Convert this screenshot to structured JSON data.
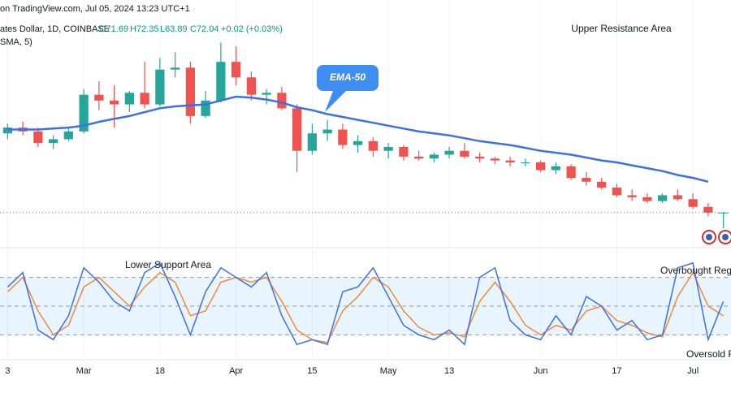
{
  "chart_data": [
    {
      "type": "candlestick",
      "source": "on TradingView.com, Jul 05, 2024 13:23 UTC+1",
      "symbol": "ates Dollar, 1D, COINBASE",
      "ohlc": [
        "O71.69",
        "H72.35",
        "L63.89",
        "C72.04"
      ],
      "change": "+0.02 (+0.03%)",
      "indicator": "SMA, 5)",
      "annotations": [
        "Upper Resistance Area"
      ],
      "categories": [
        "3",
        null,
        null,
        null,
        null,
        "Mar",
        null,
        null,
        null,
        null,
        "18",
        null,
        null,
        null,
        null,
        "Apr",
        null,
        null,
        null,
        null,
        "15",
        null,
        null,
        null,
        null,
        "May",
        null,
        null,
        null,
        "13",
        null,
        null,
        null,
        null,
        null,
        "Jun",
        null,
        null,
        null,
        null,
        "17",
        null,
        null,
        null,
        null,
        "Jul",
        null,
        null
      ],
      "open": [
        113,
        116,
        114,
        108,
        110,
        114,
        133,
        130,
        128,
        134,
        128,
        146,
        147,
        122,
        130,
        150,
        142,
        133,
        134,
        126,
        104,
        113,
        115,
        107,
        109,
        104,
        106,
        101,
        100,
        102,
        104,
        101,
        100,
        99,
        98,
        98,
        94,
        96,
        90,
        88,
        85,
        81,
        80,
        78,
        81,
        79,
        75,
        71.69
      ],
      "high": [
        118,
        119,
        116,
        112,
        116,
        136,
        140,
        138,
        135,
        150,
        152,
        155,
        150,
        135,
        160,
        158,
        145,
        136,
        137,
        128,
        118,
        120,
        118,
        112,
        111,
        108,
        107,
        104,
        103,
        106,
        108,
        103,
        101,
        101,
        100,
        99,
        98,
        97,
        93,
        90,
        87,
        84,
        82,
        82,
        84,
        82,
        77,
        72.35
      ],
      "low": [
        110,
        112,
        106,
        105,
        109,
        113,
        125,
        116,
        124,
        126,
        127,
        142,
        118,
        121,
        129,
        138,
        130,
        128,
        125,
        93,
        102,
        109,
        105,
        103,
        101,
        100,
        99,
        99,
        98,
        100,
        100,
        98,
        97,
        96,
        96,
        93,
        92,
        89,
        86,
        84,
        80,
        78,
        77,
        77,
        78,
        74,
        70,
        63.89
      ],
      "close": [
        116,
        114,
        108,
        110,
        114,
        133,
        130,
        128,
        134,
        128,
        146,
        147,
        122,
        130,
        150,
        142,
        133,
        134,
        126,
        104,
        113,
        115,
        107,
        109,
        104,
        106,
        101,
        100,
        102,
        104,
        101,
        100,
        99,
        98,
        98,
        94,
        96,
        90,
        88,
        85,
        81,
        80,
        78,
        81,
        79,
        75,
        72,
        72.04
      ],
      "up_color": "#26a69a",
      "down_color": "#ef5350",
      "ylim": [
        56,
        182
      ],
      "series": [
        {
          "name": "EMA-50",
          "color": "#3d6fe8",
          "values": [
            115,
            115,
            115,
            115.5,
            116,
            117,
            119,
            120.5,
            122,
            124,
            126,
            127,
            127.5,
            128,
            130,
            132,
            131.5,
            130.5,
            129,
            126.5,
            125,
            123,
            121.5,
            120,
            118.5,
            117,
            115.5,
            114,
            113,
            112,
            110.5,
            109,
            108,
            107,
            105.5,
            104,
            103,
            102,
            100.5,
            99,
            98,
            96.5,
            95,
            93.5,
            91.5,
            90,
            88,
            null
          ]
        }
      ]
    },
    {
      "type": "line",
      "annotations": [
        "Lower Support Area",
        "Overbought Reg",
        "Oversold R"
      ],
      "ylim": [
        0,
        100
      ],
      "bands": [
        80,
        50,
        20
      ],
      "band_color": "#2196f3",
      "series": [
        {
          "color": "#3d6fe8",
          "values": [
            70,
            85,
            25,
            15,
            40,
            90,
            75,
            55,
            45,
            85,
            95,
            60,
            20,
            65,
            90,
            80,
            70,
            85,
            40,
            10,
            15,
            10,
            65,
            70,
            90,
            60,
            30,
            20,
            15,
            25,
            10,
            80,
            90,
            35,
            20,
            15,
            40,
            20,
            60,
            50,
            25,
            35,
            15,
            20,
            90,
            95,
            15,
            55
          ]
        },
        {
          "color": "#f08a3c",
          "values": [
            65,
            80,
            45,
            20,
            30,
            70,
            80,
            65,
            50,
            70,
            85,
            75,
            40,
            45,
            75,
            80,
            75,
            80,
            55,
            25,
            15,
            12,
            45,
            60,
            80,
            70,
            45,
            28,
            20,
            22,
            18,
            55,
            75,
            55,
            30,
            20,
            30,
            25,
            45,
            50,
            35,
            30,
            22,
            18,
            60,
            85,
            50,
            40
          ]
        }
      ]
    }
  ]
}
